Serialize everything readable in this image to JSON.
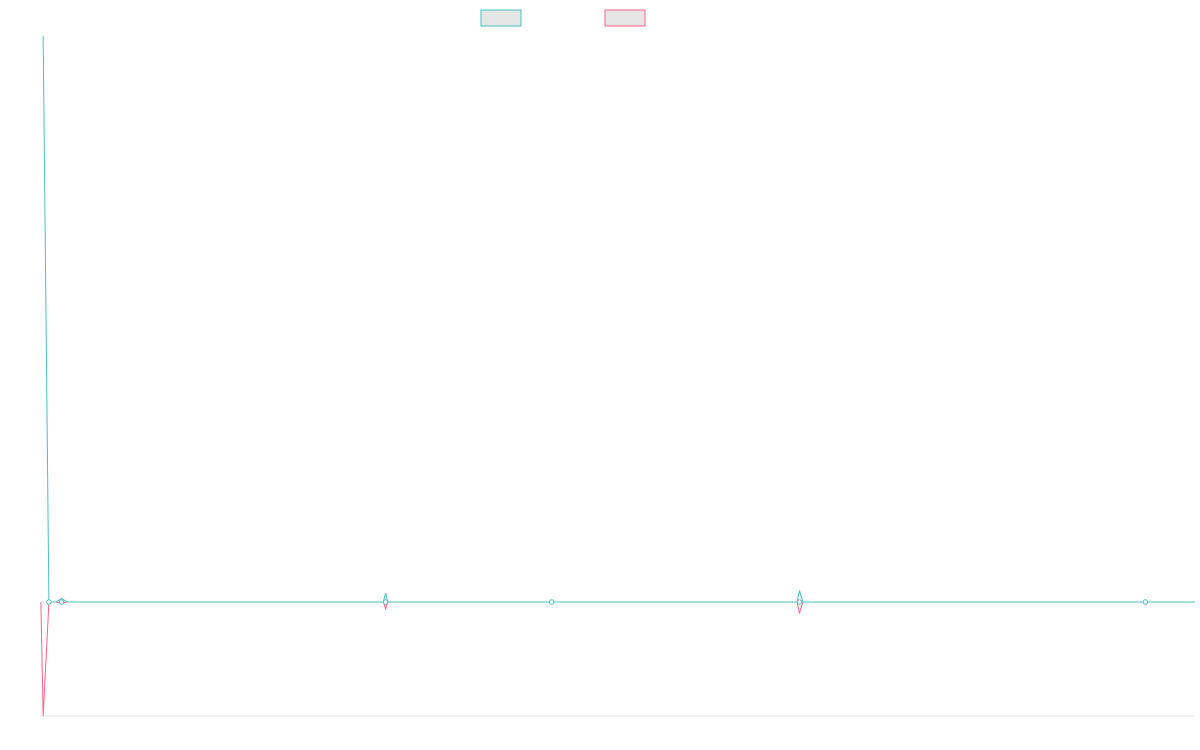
{
  "colors": {
    "series_a": "#4bc0c0",
    "series_b": "#ff6384",
    "legend_fill": "#e6e6e6",
    "axis": "#e0e0e0"
  },
  "chart_data": {
    "type": "line",
    "title": "",
    "xlabel": "",
    "ylabel": "",
    "grid": false,
    "legend": "top-center",
    "x_is_categorical": false,
    "xlim": [
      0,
      1000
    ],
    "ylim": [
      -100,
      500
    ],
    "series": [
      {
        "color_key": "series_a",
        "points": [
          [
            1,
            500
          ],
          [
            6,
            0
          ],
          [
            12,
            0
          ],
          [
            17,
            3
          ],
          [
            22,
            0
          ],
          [
            296,
            0
          ],
          [
            298,
            8
          ],
          [
            300,
            0
          ],
          [
            440,
            0
          ],
          [
            442,
            1
          ],
          [
            444,
            0
          ],
          [
            655,
            0
          ],
          [
            656,
            6
          ],
          [
            657,
            10
          ],
          [
            658,
            6
          ],
          [
            660,
            0
          ],
          [
            955,
            0
          ],
          [
            957,
            2
          ],
          [
            959,
            0
          ],
          [
            1000,
            0
          ]
        ],
        "markers": [
          6,
          17,
          298,
          442,
          657,
          957
        ]
      },
      {
        "color_key": "series_b",
        "points": [
          [
            -1,
            0
          ],
          [
            1,
            -100
          ],
          [
            6,
            0
          ],
          [
            12,
            0
          ],
          [
            17,
            -1
          ],
          [
            22,
            0
          ],
          [
            296,
            0
          ],
          [
            298,
            -6
          ],
          [
            300,
            0
          ],
          [
            440,
            0
          ],
          [
            442,
            -1
          ],
          [
            444,
            0
          ],
          [
            655,
            0
          ],
          [
            656,
            -6
          ],
          [
            657,
            -10
          ],
          [
            658,
            -6
          ],
          [
            660,
            0
          ],
          [
            955,
            0
          ],
          [
            957,
            -2
          ],
          [
            959,
            0
          ],
          [
            1000,
            0
          ]
        ],
        "markers": [
          6,
          17,
          298,
          442,
          657,
          957
        ]
      }
    ]
  }
}
